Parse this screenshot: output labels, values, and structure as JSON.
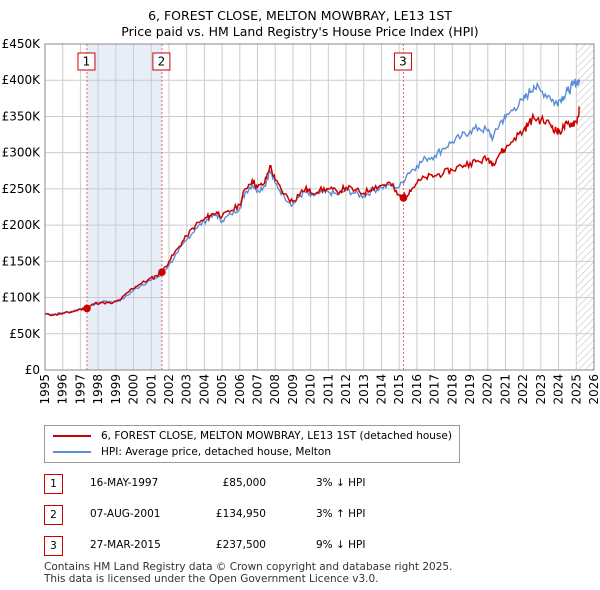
{
  "title_line1": "6, FOREST CLOSE, MELTON MOWBRAY, LE13 1ST",
  "title_line2": "Price paid vs. HM Land Registry's House Price Index (HPI)",
  "chart_data": {
    "type": "line",
    "title": "Price paid vs. HM Land Registry's House Price Index (HPI)",
    "xlabel": "",
    "ylabel": "",
    "xlim": [
      1995,
      2026
    ],
    "ylim": [
      0,
      450000
    ],
    "x_ticks": [
      "1995",
      "1996",
      "1997",
      "1998",
      "1999",
      "2000",
      "2001",
      "2002",
      "2003",
      "2004",
      "2005",
      "2006",
      "2007",
      "2008",
      "2009",
      "2010",
      "2011",
      "2012",
      "2013",
      "2014",
      "2015",
      "2016",
      "2017",
      "2018",
      "2019",
      "2020",
      "2021",
      "2022",
      "2023",
      "2024",
      "2025",
      "2026"
    ],
    "y_ticks": [
      {
        "value": 0,
        "label": "£0"
      },
      {
        "value": 50000,
        "label": "£50K"
      },
      {
        "value": 100000,
        "label": "£100K"
      },
      {
        "value": 150000,
        "label": "£150K"
      },
      {
        "value": 200000,
        "label": "£200K"
      },
      {
        "value": 250000,
        "label": "£250K"
      },
      {
        "value": 300000,
        "label": "£300K"
      },
      {
        "value": 350000,
        "label": "£350K"
      },
      {
        "value": 400000,
        "label": "£400K"
      },
      {
        "value": 450000,
        "label": "£450K"
      }
    ],
    "grid": true,
    "series": [
      {
        "name": "6, FOREST CLOSE, MELTON MOWBRAY, LE13 1ST (detached house)",
        "color": "#cc0000",
        "x": [
          1995.0,
          1995.5,
          1996.0,
          1996.5,
          1997.0,
          1997.37,
          1997.8,
          1998.3,
          1998.8,
          1999.3,
          1999.8,
          2000.3,
          2000.8,
          2001.3,
          2001.6,
          2002.0,
          2002.5,
          2003.0,
          2003.5,
          2004.0,
          2004.3,
          2004.7,
          2005.0,
          2005.5,
          2006.0,
          2006.3,
          2006.7,
          2007.0,
          2007.4,
          2007.7,
          2008.0,
          2008.5,
          2009.0,
          2009.3,
          2009.7,
          2010.0,
          2010.5,
          2011.0,
          2011.5,
          2012.0,
          2012.5,
          2013.0,
          2013.5,
          2014.0,
          2014.5,
          2014.9,
          2015.24,
          2015.6,
          2016.0,
          2016.5,
          2017.0,
          2017.5,
          2018.0,
          2018.5,
          2019.0,
          2019.5,
          2020.0,
          2020.3,
          2020.7,
          2021.0,
          2021.5,
          2022.0,
          2022.3,
          2022.6,
          2023.0,
          2023.5,
          2023.8,
          2024.0,
          2024.3,
          2024.5,
          2024.8,
          2025.0,
          2025.2
        ],
        "values": [
          77000,
          76000,
          78000,
          80000,
          84000,
          85000,
          92000,
          93000,
          92000,
          98000,
          110000,
          118000,
          124000,
          130000,
          134950,
          150000,
          168000,
          185000,
          200000,
          208000,
          213000,
          218000,
          212000,
          220000,
          228000,
          250000,
          262000,
          252000,
          258000,
          282000,
          262000,
          243000,
          232000,
          242000,
          250000,
          245000,
          248000,
          250000,
          246000,
          252000,
          248000,
          244000,
          252000,
          255000,
          258000,
          242000,
          237500,
          248000,
          258000,
          266000,
          268000,
          272000,
          276000,
          282000,
          286000,
          288000,
          292000,
          285000,
          300000,
          305000,
          320000,
          330000,
          340000,
          348000,
          345000,
          340000,
          332000,
          328000,
          335000,
          340000,
          340000,
          343000,
          360000
        ]
      },
      {
        "name": "HPI: Average price, detached house, Melton",
        "color": "#5b8ed6",
        "x": [
          1995.0,
          1995.5,
          1996.0,
          1996.5,
          1997.0,
          1997.5,
          1998.0,
          1998.5,
          1999.0,
          1999.5,
          2000.0,
          2000.5,
          2001.0,
          2001.5,
          2002.0,
          2002.5,
          2003.0,
          2003.5,
          2004.0,
          2004.3,
          2004.7,
          2005.0,
          2005.5,
          2006.0,
          2006.3,
          2006.7,
          2007.0,
          2007.4,
          2007.7,
          2008.0,
          2008.5,
          2009.0,
          2009.3,
          2009.7,
          2010.0,
          2010.5,
          2011.0,
          2011.5,
          2012.0,
          2012.5,
          2013.0,
          2013.5,
          2014.0,
          2014.5,
          2015.0,
          2015.5,
          2016.0,
          2016.5,
          2017.0,
          2017.5,
          2018.0,
          2018.5,
          2019.0,
          2019.5,
          2020.0,
          2020.3,
          2020.7,
          2021.0,
          2021.5,
          2022.0,
          2022.3,
          2022.6,
          2023.0,
          2023.5,
          2023.8,
          2024.0,
          2024.3,
          2024.5,
          2024.8,
          2025.0,
          2025.2
        ],
        "values": [
          78000,
          77000,
          79000,
          81000,
          84000,
          88000,
          93000,
          95000,
          94000,
          100000,
          110000,
          118000,
          124000,
          130000,
          145000,
          162000,
          180000,
          195000,
          205000,
          210000,
          214000,
          206000,
          215000,
          224000,
          245000,
          256000,
          248000,
          254000,
          275000,
          258000,
          240000,
          228000,
          238000,
          246000,
          240000,
          244000,
          246000,
          242000,
          248000,
          244000,
          240000,
          248000,
          252000,
          255000,
          252000,
          272000,
          282000,
          292000,
          296000,
          306000,
          315000,
          322000,
          330000,
          334000,
          330000,
          320000,
          342000,
          348000,
          362000,
          372000,
          382000,
          392000,
          385000,
          378000,
          368000,
          372000,
          378000,
          385000,
          392000,
          398000,
          400000
        ]
      }
    ],
    "markers": [
      {
        "label": "1",
        "x": 1997.37,
        "y": 85000
      },
      {
        "label": "2",
        "x": 2001.6,
        "y": 134950
      },
      {
        "label": "3",
        "x": 2015.24,
        "y": 237500
      }
    ],
    "hatched_from_x": 2025.0
  },
  "legend": {
    "property_label": "6, FOREST CLOSE, MELTON MOWBRAY, LE13 1ST (detached house)",
    "hpi_label": "HPI: Average price, detached house, Melton"
  },
  "transactions": [
    {
      "num": "1",
      "date": "16-MAY-1997",
      "price": "£85,000",
      "hpi": "3% ↓ HPI"
    },
    {
      "num": "2",
      "date": "07-AUG-2001",
      "price": "£134,950",
      "hpi": "3% ↑ HPI"
    },
    {
      "num": "3",
      "date": "27-MAR-2015",
      "price": "£237,500",
      "hpi": "9% ↓ HPI"
    }
  ],
  "footer": {
    "line1": "Contains HM Land Registry data © Crown copyright and database right 2025.",
    "line2": "This data is licensed under the Open Government Licence v3.0."
  },
  "colors": {
    "property": "#cc0000",
    "hpi": "#5b8ed6",
    "shade": "#e8eef8",
    "grid": "#cccccc"
  }
}
